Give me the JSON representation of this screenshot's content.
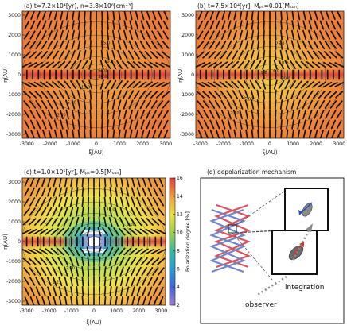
{
  "chart_data": [
    {
      "type": "heatmap",
      "panel_label": "(a) t=7.2×10⁴[yr], n=3.8×10⁶[cm⁻³]",
      "xlabel": "ξ(AU)",
      "ylabel": "η(AU)",
      "xlim": [
        -3200,
        3200
      ],
      "ylim": [
        -3200,
        3200
      ],
      "xticks": [
        -3000,
        -2000,
        -1000,
        0,
        1000,
        2000,
        3000
      ],
      "yticks": [
        -3000,
        -2000,
        -1000,
        0,
        1000,
        2000,
        3000
      ],
      "xtick_labels": [
        "-3000",
        "-2000",
        "-1000",
        "0",
        "1000",
        "2000",
        "3000"
      ],
      "ytick_labels": [
        "-3000",
        "-2000",
        "-1000",
        "0",
        "1000",
        "2000",
        "3000"
      ],
      "polarization_levels": {
        "midplane": 16,
        "background": 12,
        "center": 12
      },
      "contour_labels": [
        {
          "text": "25.0",
          "x": 200,
          "y": 1550
        },
        {
          "text": "10.0",
          "x": 350,
          "y": 600
        },
        {
          "text": "60.0",
          "x": 80,
          "y": 150
        },
        {
          "text": "30.0",
          "x": 80,
          "y": -160
        },
        {
          "text": "10.0",
          "x": -650,
          "y": -700
        },
        {
          "text": "5.00",
          "x": -1250,
          "y": -1450
        },
        {
          "text": "2.50",
          "x": -1700,
          "y": -2100
        }
      ],
      "contour_radii": [
        280,
        560,
        950,
        1500,
        2100,
        2800
      ]
    },
    {
      "type": "heatmap",
      "panel_label": "(b) t=7.5×10⁴[yr], Mₚₛ=0.01[Mₛᵤₙ]",
      "xlabel": "ξ(AU)",
      "ylabel": "η(AU)",
      "xlim": [
        -3200,
        3200
      ],
      "ylim": [
        -3200,
        3200
      ],
      "xticks": [
        -3000,
        -2000,
        -1000,
        0,
        1000,
        2000,
        3000
      ],
      "yticks": [
        -3000,
        -2000,
        -1000,
        0,
        1000,
        2000,
        3000
      ],
      "xtick_labels": [
        "-3000",
        "-2000",
        "-1000",
        "0",
        "1000",
        "2000",
        "3000"
      ],
      "ytick_labels": [
        "-3000",
        "-2000",
        "-1000",
        "0",
        "1000",
        "2000",
        "3000"
      ],
      "polarization_levels": {
        "midplane": 16,
        "background": 12,
        "center": 10
      },
      "contour_labels": [
        {
          "text": "25.0",
          "x": 250,
          "y": 1500
        },
        {
          "text": "10.0",
          "x": 400,
          "y": 550
        },
        {
          "text": "0.0",
          "x": 150,
          "y": 120
        },
        {
          "text": "1.9.0",
          "x": -550,
          "y": 50
        },
        {
          "text": "30.0",
          "x": 500,
          "y": -250
        },
        {
          "text": "5.00",
          "x": -1100,
          "y": -1300
        },
        {
          "text": "2.50",
          "x": -1700,
          "y": -2000
        }
      ],
      "contour_radii": [
        280,
        560,
        950,
        1500,
        2100,
        2800
      ]
    },
    {
      "type": "heatmap",
      "panel_label": "(c) t=1.0×10⁵[yr], Mₚₛ=0.5[Mₛᵤₙ]",
      "xlabel": "ξ(AU)",
      "ylabel": "η(AU)",
      "xlim": [
        -3200,
        3200
      ],
      "ylim": [
        -3200,
        3200
      ],
      "xticks": [
        -3000,
        -2000,
        -1000,
        0,
        1000,
        2000,
        3000
      ],
      "yticks": [
        -3000,
        -2000,
        -1000,
        0,
        1000,
        2000,
        3000
      ],
      "xtick_labels": [
        "-3000",
        "-2000",
        "-1000",
        "0",
        "1000",
        "2000",
        "3000"
      ],
      "ytick_labels": [
        "-3000",
        "-2000",
        "-1000",
        "0",
        "1000",
        "2000",
        "3000"
      ],
      "polarization_levels": {
        "midplane": 15,
        "background": 11,
        "center": 2
      },
      "contour_labels": [
        {
          "text": "20.0",
          "x": 550,
          "y": 1550
        },
        {
          "text": "5.00",
          "x": 1450,
          "y": 800
        },
        {
          "text": "2.50",
          "x": -1250,
          "y": -1400
        },
        {
          "text": "1.25",
          "x": -1850,
          "y": -2100
        }
      ],
      "contour_radii": [
        280,
        560,
        950,
        1500,
        2100,
        2800
      ],
      "colorbar": {
        "label": "Polarization degree [%]",
        "range": [
          2,
          16
        ],
        "ticks": [
          2,
          4,
          6,
          8,
          10,
          12,
          14,
          16
        ],
        "tick_labels": [
          "2",
          "4",
          "6",
          "8",
          "10",
          "12",
          "14",
          "16"
        ]
      }
    }
  ],
  "diagram": {
    "title": "(d) depolarization mechanism",
    "integration_label": "integration",
    "observer_label": "observer"
  }
}
